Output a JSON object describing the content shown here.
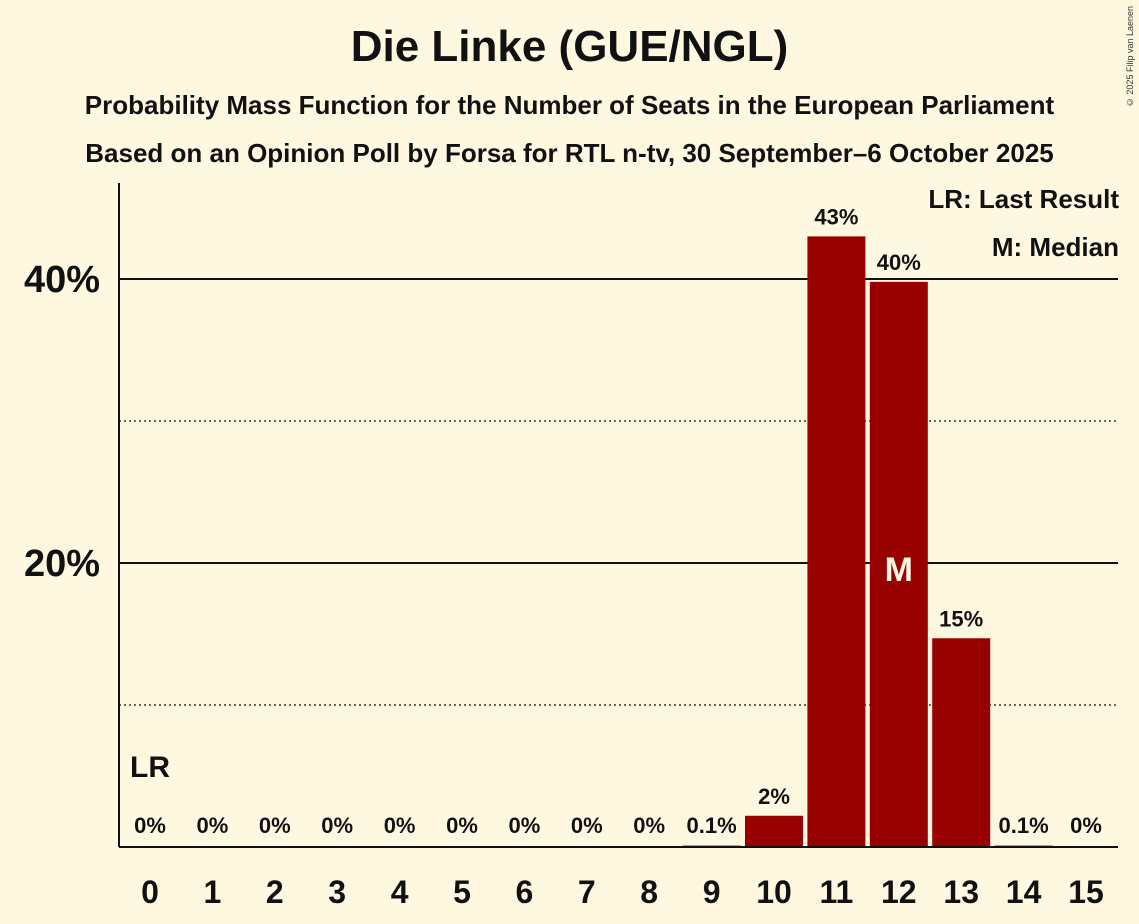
{
  "chart_data": {
    "type": "bar",
    "title": "Die Linke (GUE/NGL)",
    "subtitle": "Probability Mass Function for the Number of Seats in the European Parliament",
    "subtitle2": "Based on an Opinion Poll by Forsa for RTL n-tv, 30 September–6 October 2025",
    "copyright": "© 2025 Filip van Laenen",
    "categories": [
      "0",
      "1",
      "2",
      "3",
      "4",
      "5",
      "6",
      "7",
      "8",
      "9",
      "10",
      "11",
      "12",
      "13",
      "14",
      "15"
    ],
    "values": [
      0,
      0,
      0,
      0,
      0,
      0,
      0,
      0,
      0,
      0.1,
      2.2,
      43,
      39.8,
      14.7,
      0.1,
      0
    ],
    "data_labels": [
      "0%",
      "0%",
      "0%",
      "0%",
      "0%",
      "0%",
      "0%",
      "0%",
      "0%",
      "0.1%",
      "2%",
      "43%",
      "40%",
      "15%",
      "0.1%",
      "0%"
    ],
    "ylim": [
      0,
      47
    ],
    "y_ticks": [
      20,
      40
    ],
    "y_tick_labels": [
      "20%",
      "40%"
    ],
    "minor_gridlines": [
      10,
      30
    ],
    "bar_color": "#990000",
    "last_result": {
      "seat": 0,
      "label": "LR"
    },
    "median": {
      "seat": 12,
      "label": "M"
    },
    "legend": [
      "LR: Last Result",
      "M: Median"
    ],
    "legend_placement": "top-right"
  }
}
